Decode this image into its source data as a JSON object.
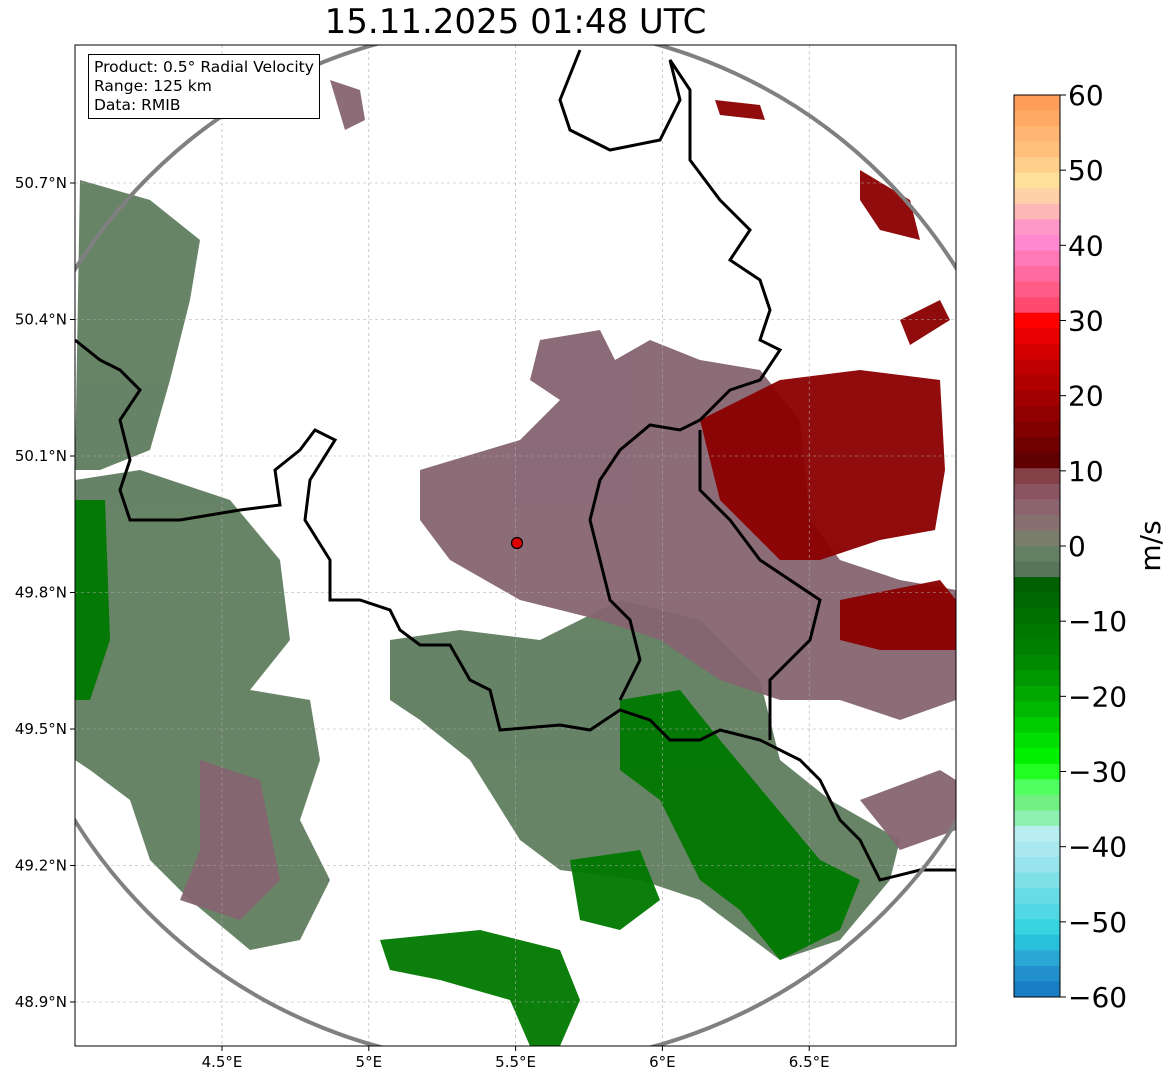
{
  "title": "15.11.2025 01:48 UTC",
  "info_box": [
    "Product: 0.5° Radial Velocity",
    "Range: 125 km",
    "Data: RMIB"
  ],
  "lat_ticks": [
    {
      "value": 50.7,
      "label": "50.7°N"
    },
    {
      "value": 50.4,
      "label": "50.4°N"
    },
    {
      "value": 50.1,
      "label": "50.1°N"
    },
    {
      "value": 49.8,
      "label": "49.8°N"
    },
    {
      "value": 49.5,
      "label": "49.5°N"
    },
    {
      "value": 49.2,
      "label": "49.2°N"
    },
    {
      "value": 48.9,
      "label": "48.9°N"
    }
  ],
  "lon_ticks": [
    {
      "value": 4.5,
      "label": "4.5°E"
    },
    {
      "value": 5.0,
      "label": "5°E"
    },
    {
      "value": 5.5,
      "label": "5.5°E"
    },
    {
      "value": 6.0,
      "label": "6°E"
    },
    {
      "value": 6.5,
      "label": "6.5°E"
    }
  ],
  "colorbar": {
    "label": "m/s",
    "range": [
      -60,
      60
    ],
    "ticks": [
      60,
      50,
      40,
      30,
      20,
      10,
      0,
      -10,
      -20,
      -30,
      -40,
      -50,
      -60
    ],
    "tick_labels": [
      "60",
      "50",
      "40",
      "30",
      "20",
      "10",
      "0",
      "−10",
      "−20",
      "−30",
      "−40",
      "−50",
      "−60"
    ],
    "colors_top_to_bottom": [
      "#ff9e5a",
      "#ffa965",
      "#ffb672",
      "#ffc07c",
      "#ffd08c",
      "#ffe09a",
      "#ffd1a8",
      "#ffb8b8",
      "#ff98c8",
      "#ff88d0",
      "#ff78b8",
      "#ff6aa0",
      "#ff5c88",
      "#ff4a70",
      "#ff0000",
      "#e80000",
      "#d40000",
      "#c00000",
      "#b00000",
      "#a00000",
      "#900000",
      "#800000",
      "#700000",
      "#600000",
      "#864048",
      "#8a5560",
      "#8b6470",
      "#887070",
      "#7a7c6c",
      "#648062",
      "#58755a",
      "#006000",
      "#006800",
      "#007000",
      "#007800",
      "#008000",
      "#008a00",
      "#009800",
      "#00a800",
      "#00b800",
      "#00cc00",
      "#00e000",
      "#00f000",
      "#20ff20",
      "#50ff60",
      "#70f080",
      "#90f0b0",
      "#b8eef0",
      "#a8e8ee",
      "#98e4ec",
      "#80e0e8",
      "#68dce6",
      "#50d8e4",
      "#38d4e2",
      "#28c0da",
      "#2aa8d4",
      "#2290cc",
      "#1a7ec4"
    ]
  },
  "station_marker": "red-circle"
}
